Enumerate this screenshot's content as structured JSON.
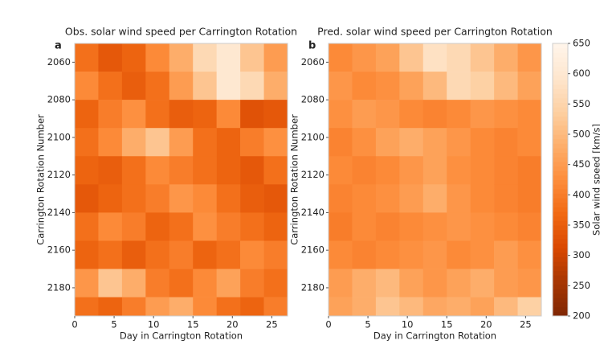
{
  "chart_data": [
    {
      "type": "heatmap",
      "label": "a",
      "title": "Obs. solar wind speed per Carrington Rotation",
      "xlabel": "Day in Carrington Rotation",
      "ylabel": "Carrington Rotation Number",
      "x": [
        0,
        3,
        6,
        9,
        12,
        15,
        18,
        21,
        24,
        27
      ],
      "y": [
        2050,
        2065,
        2080,
        2095,
        2110,
        2125,
        2140,
        2155,
        2170,
        2185,
        2195
      ],
      "xlim": [
        0,
        27
      ],
      "ylim": [
        2195,
        2050
      ],
      "xticks": [
        0,
        5,
        10,
        15,
        20,
        25
      ],
      "yticks": [
        2060,
        2080,
        2100,
        2120,
        2140,
        2160,
        2180
      ],
      "values": [
        [
          380,
          340,
          360,
          420,
          480,
          560,
          600,
          520,
          450
        ],
        [
          420,
          380,
          350,
          380,
          450,
          520,
          600,
          560,
          480
        ],
        [
          360,
          400,
          430,
          380,
          350,
          360,
          420,
          330,
          340
        ],
        [
          380,
          420,
          480,
          520,
          450,
          380,
          360,
          400,
          430
        ],
        [
          360,
          350,
          380,
          420,
          400,
          380,
          360,
          340,
          380
        ],
        [
          340,
          360,
          380,
          400,
          440,
          420,
          380,
          350,
          340
        ],
        [
          380,
          420,
          400,
          360,
          380,
          430,
          400,
          380,
          360
        ],
        [
          360,
          380,
          350,
          380,
          400,
          360,
          380,
          420,
          400
        ],
        [
          440,
          520,
          480,
          400,
          380,
          420,
          460,
          400,
          380
        ],
        [
          380,
          360,
          400,
          450,
          480,
          420,
          380,
          360,
          400
        ]
      ]
    },
    {
      "type": "heatmap",
      "label": "b",
      "title": "Pred. solar wind speed per Carrington Rotation",
      "xlabel": "Day in Carrington Rotation",
      "ylabel": "Carrington Rotation Number",
      "x": [
        0,
        3,
        6,
        9,
        12,
        15,
        18,
        21,
        24,
        27
      ],
      "y": [
        2050,
        2065,
        2080,
        2095,
        2110,
        2125,
        2140,
        2155,
        2170,
        2185,
        2195
      ],
      "xlim": [
        0,
        27
      ],
      "ylim": [
        2195,
        2050
      ],
      "xticks": [
        0,
        5,
        10,
        15,
        20,
        25
      ],
      "yticks": [
        2060,
        2080,
        2100,
        2120,
        2140,
        2160,
        2180
      ],
      "values": [
        [
          420,
          440,
          460,
          520,
          580,
          560,
          520,
          480,
          440
        ],
        [
          440,
          420,
          430,
          460,
          500,
          560,
          540,
          500,
          460
        ],
        [
          430,
          450,
          440,
          420,
          410,
          420,
          440,
          430,
          420
        ],
        [
          410,
          430,
          460,
          480,
          460,
          440,
          420,
          410,
          420
        ],
        [
          420,
          410,
          420,
          440,
          460,
          430,
          420,
          410,
          400
        ],
        [
          410,
          420,
          430,
          450,
          480,
          440,
          420,
          410,
          400
        ],
        [
          400,
          420,
          410,
          420,
          430,
          440,
          430,
          420,
          410
        ],
        [
          420,
          410,
          420,
          430,
          440,
          420,
          430,
          450,
          430
        ],
        [
          450,
          480,
          500,
          460,
          440,
          460,
          480,
          450,
          440
        ],
        [
          460,
          480,
          520,
          500,
          470,
          480,
          460,
          500,
          540
        ]
      ],
      "colorbar": {
        "label": "Solar wind speed [km/s]",
        "lim": [
          200,
          650
        ],
        "ticks": [
          200,
          250,
          300,
          350,
          400,
          450,
          500,
          550,
          600,
          650
        ]
      }
    }
  ]
}
